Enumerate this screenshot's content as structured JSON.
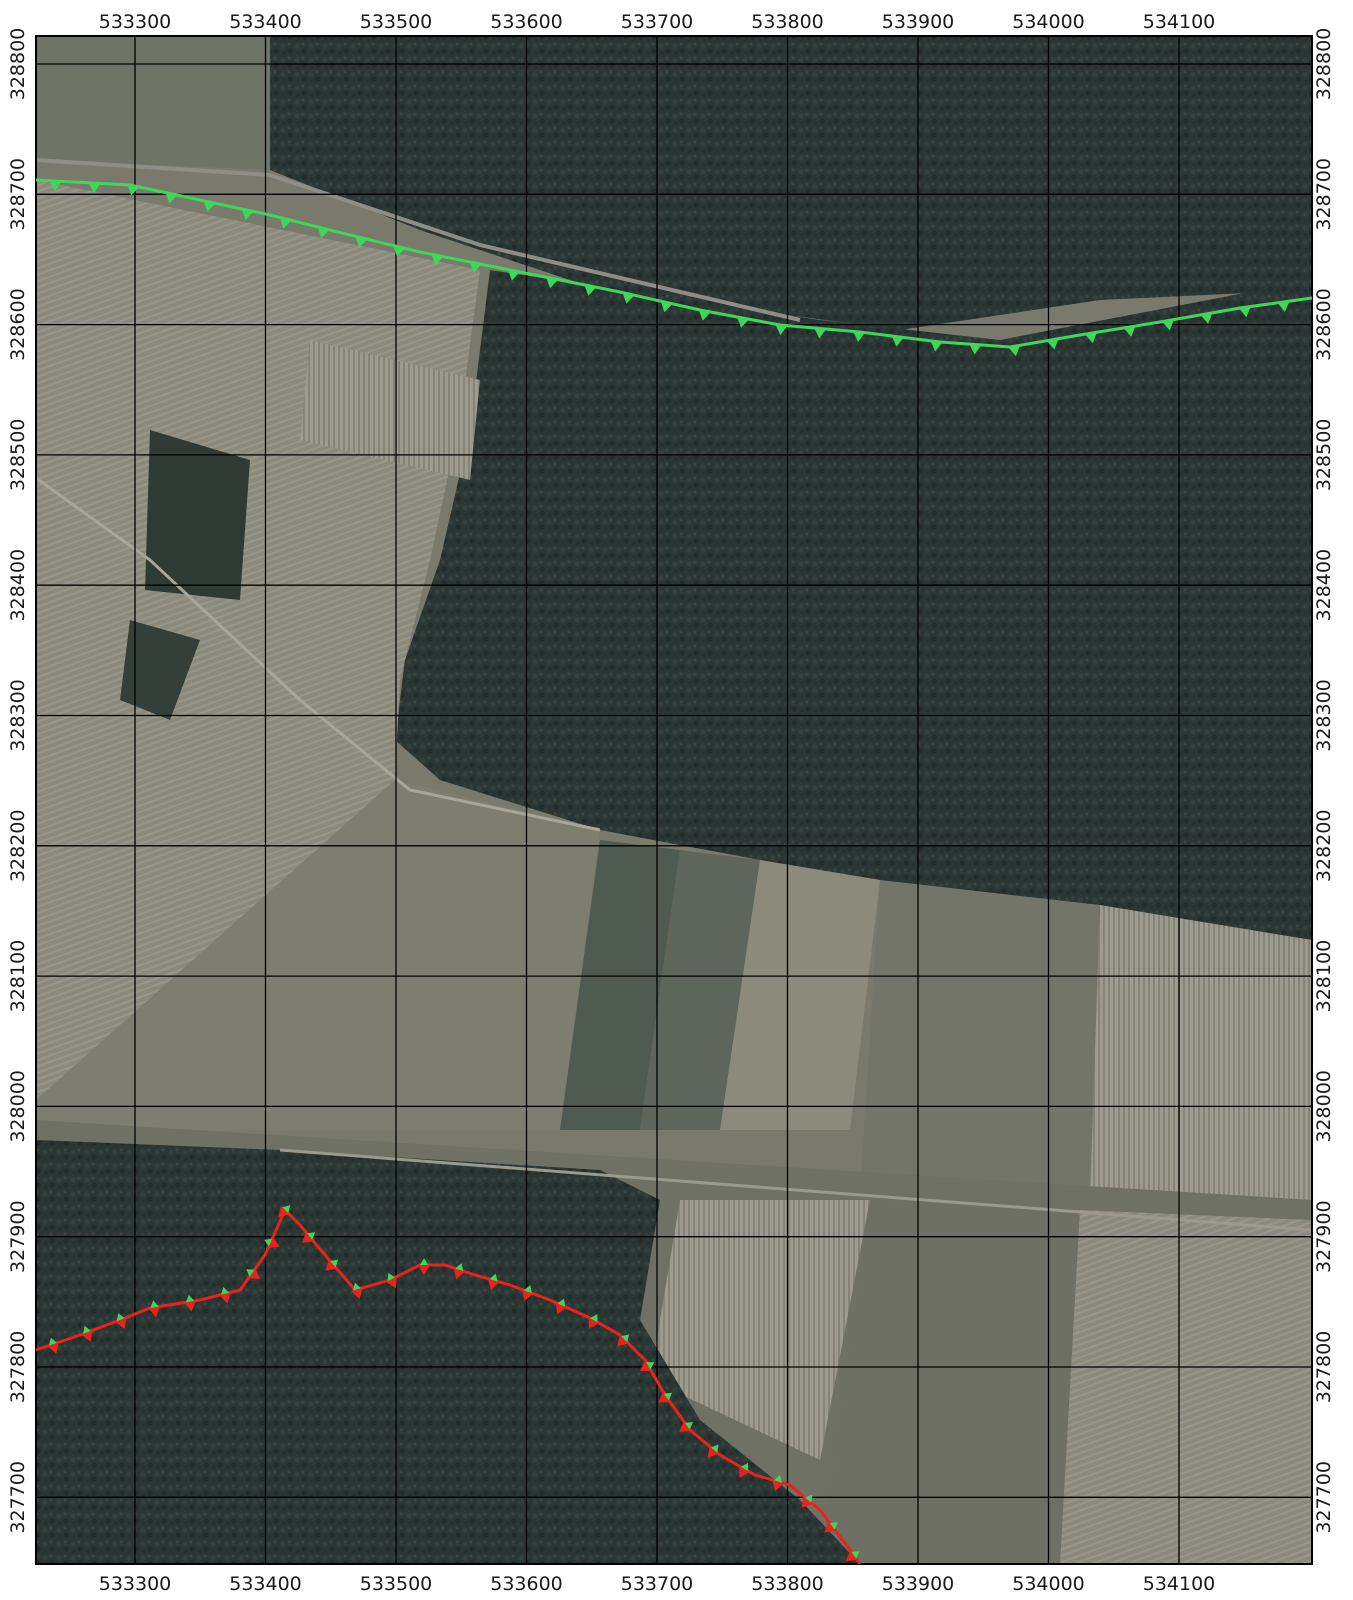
{
  "map": {
    "easting_ticks": [
      "533300",
      "533400",
      "533500",
      "533600",
      "533700",
      "533800",
      "533900",
      "534000",
      "534100"
    ],
    "northing_ticks": [
      "328800",
      "328700",
      "328600",
      "328500",
      "328400",
      "328300",
      "328200",
      "328100",
      "328000",
      "327900",
      "327800",
      "327700"
    ],
    "colors": {
      "forest": "#2a3634",
      "field_light": "#8b8a79",
      "field_mid": "#6f7065",
      "grid_line": "#000000",
      "green_line": "#3fd75a",
      "red_line": "#e8231c"
    },
    "lines": [
      {
        "name": "green",
        "color": "#3fd75a"
      },
      {
        "name": "red",
        "color": "#e8231c"
      }
    ]
  }
}
